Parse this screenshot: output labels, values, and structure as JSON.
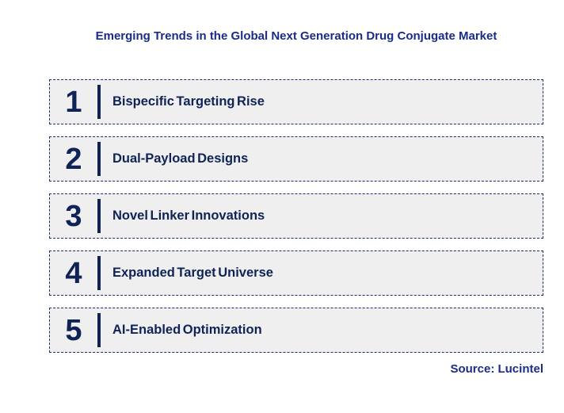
{
  "title": "Emerging Trends in the Global Next Generation Drug Conjugate Market",
  "source_note": "Source: Lucintel",
  "colors": {
    "title_text": "#1A2C87",
    "item_text": "#0F2356",
    "divider": "#0F2356",
    "box_background": "#EFEFEF",
    "box_border": "#1C2F66",
    "page_background": "#FFFFFF"
  },
  "trends": [
    {
      "number": "1",
      "label": "Bispecific Targeting Rise"
    },
    {
      "number": "2",
      "label": "Dual-Payload Designs"
    },
    {
      "number": "3",
      "label": "Novel Linker Innovations"
    },
    {
      "number": "4",
      "label": "Expanded Target Universe"
    },
    {
      "number": "5",
      "label": "AI-Enabled Optimization"
    }
  ]
}
